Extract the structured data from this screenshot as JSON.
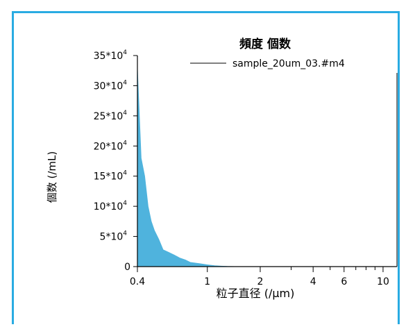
{
  "colors": {
    "frame": "#29abe2",
    "fill": "#4fb3dd",
    "axis": "#000000",
    "background": "#ffffff"
  },
  "chart_data": {
    "type": "area",
    "title": "頻度 個数",
    "xlabel": "粒子直径 (/μm)",
    "ylabel": "個数 (/mL)",
    "x_scale": "log",
    "xlim": [
      0.4,
      12
    ],
    "ylim": [
      0,
      350000
    ],
    "legend_position": "top-right",
    "grid": false,
    "series": [
      {
        "name": "sample_20um_03.#m4",
        "x": [
          0.4,
          0.42,
          0.44,
          0.46,
          0.48,
          0.5,
          0.53,
          0.56,
          0.6,
          0.65,
          0.7,
          0.75,
          0.8,
          0.9,
          1.0,
          1.1,
          1.2,
          1.3,
          1.5
        ],
        "y": [
          330000,
          180000,
          150000,
          100000,
          75000,
          60000,
          45000,
          28000,
          24000,
          19000,
          14000,
          11000,
          7000,
          5000,
          3000,
          1500,
          800,
          300,
          0
        ]
      }
    ],
    "x_ticks": [
      {
        "value": 0.4,
        "label": "0.4"
      },
      {
        "value": 1,
        "label": "1"
      },
      {
        "value": 2,
        "label": "2"
      },
      {
        "value": 4,
        "label": "4"
      },
      {
        "value": 6,
        "label": "6"
      },
      {
        "value": 10,
        "label": "10"
      }
    ],
    "x_minor_ticks": [
      3,
      5,
      7,
      8,
      9
    ],
    "y_ticks": [
      {
        "value": 0,
        "base": "0",
        "exp": ""
      },
      {
        "value": 50000,
        "base": "5*10",
        "exp": "4"
      },
      {
        "value": 100000,
        "base": "10*10",
        "exp": "4"
      },
      {
        "value": 150000,
        "base": "15*10",
        "exp": "4"
      },
      {
        "value": 200000,
        "base": "20*10",
        "exp": "4"
      },
      {
        "value": 250000,
        "base": "25*10",
        "exp": "4"
      },
      {
        "value": 300000,
        "base": "30*10",
        "exp": "4"
      },
      {
        "value": 350000,
        "base": "35*10",
        "exp": "4"
      }
    ]
  }
}
